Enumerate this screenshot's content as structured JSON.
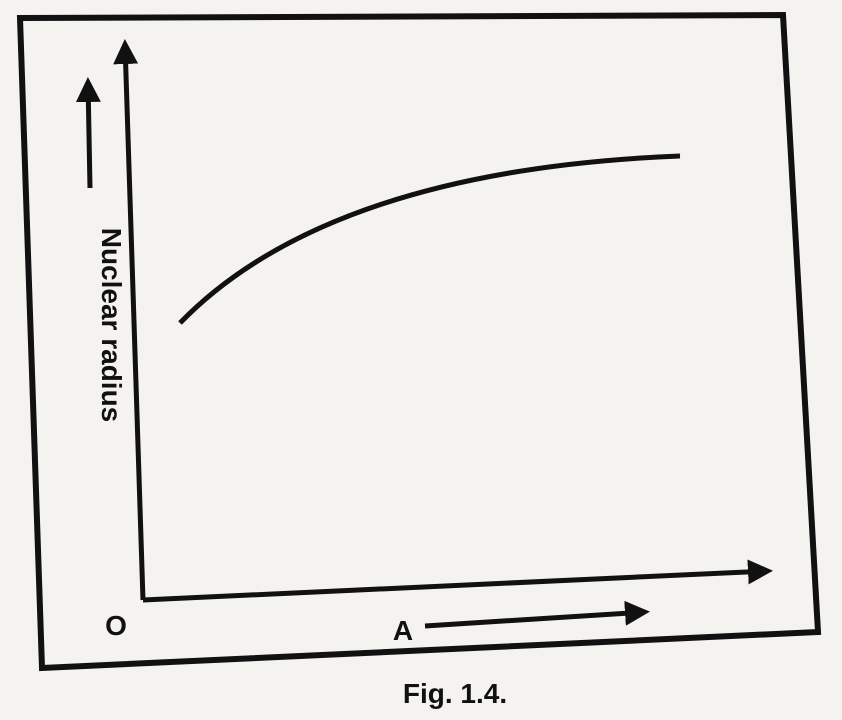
{
  "axes": {
    "y_label": "Nuclear radius",
    "x_label": "A",
    "origin": "O"
  },
  "caption": "Fig. 1.4."
}
